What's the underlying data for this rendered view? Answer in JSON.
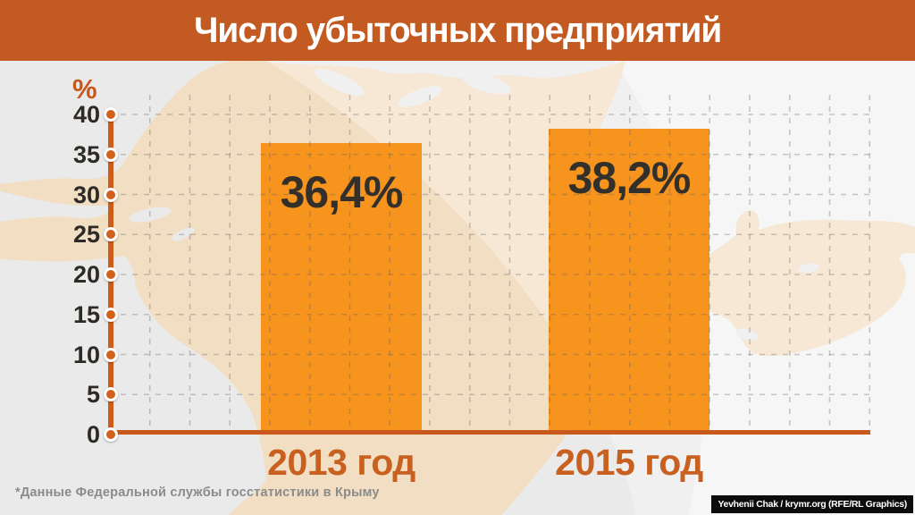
{
  "header": {
    "title": "Число убыточных предприятий"
  },
  "chart_data": {
    "type": "bar",
    "title": "Число убыточных предприятий",
    "ylabel": "%",
    "ylim": [
      0,
      40
    ],
    "yticks": [
      0,
      5,
      10,
      15,
      20,
      25,
      30,
      35,
      40
    ],
    "grid": "dashed",
    "legend": "none",
    "categories": [
      "2013 год",
      "2015 год"
    ],
    "values": [
      36.4,
      38.2
    ],
    "value_labels": [
      "36,4%",
      "38,2%"
    ]
  },
  "footer": {
    "footnote": "*Данные Федеральной службы госстатистики в Крыму",
    "credit": "Yevhenii Chak / krymr.org (RFE/RL Graphics)"
  },
  "colors": {
    "header_bg": "#C25A21",
    "bar": "#F6941E",
    "axis_line": "#CC5D1B",
    "axis_dot": "#D2611C",
    "baseline": "#C8581C",
    "unit_label": "#C8571B",
    "category_label": "#C8611F",
    "value_text": "#33302C",
    "tick_text": "#2E2A26",
    "background": "#EAEAEA",
    "map_land": "#F2DEC3",
    "swoosh": "#F3F3F3",
    "grid": "rgba(100,95,90,0.33)",
    "footnote_text": "#8B8B8B",
    "credit_bg": "#0C0C0C",
    "credit_text": "#FFFFFF"
  }
}
